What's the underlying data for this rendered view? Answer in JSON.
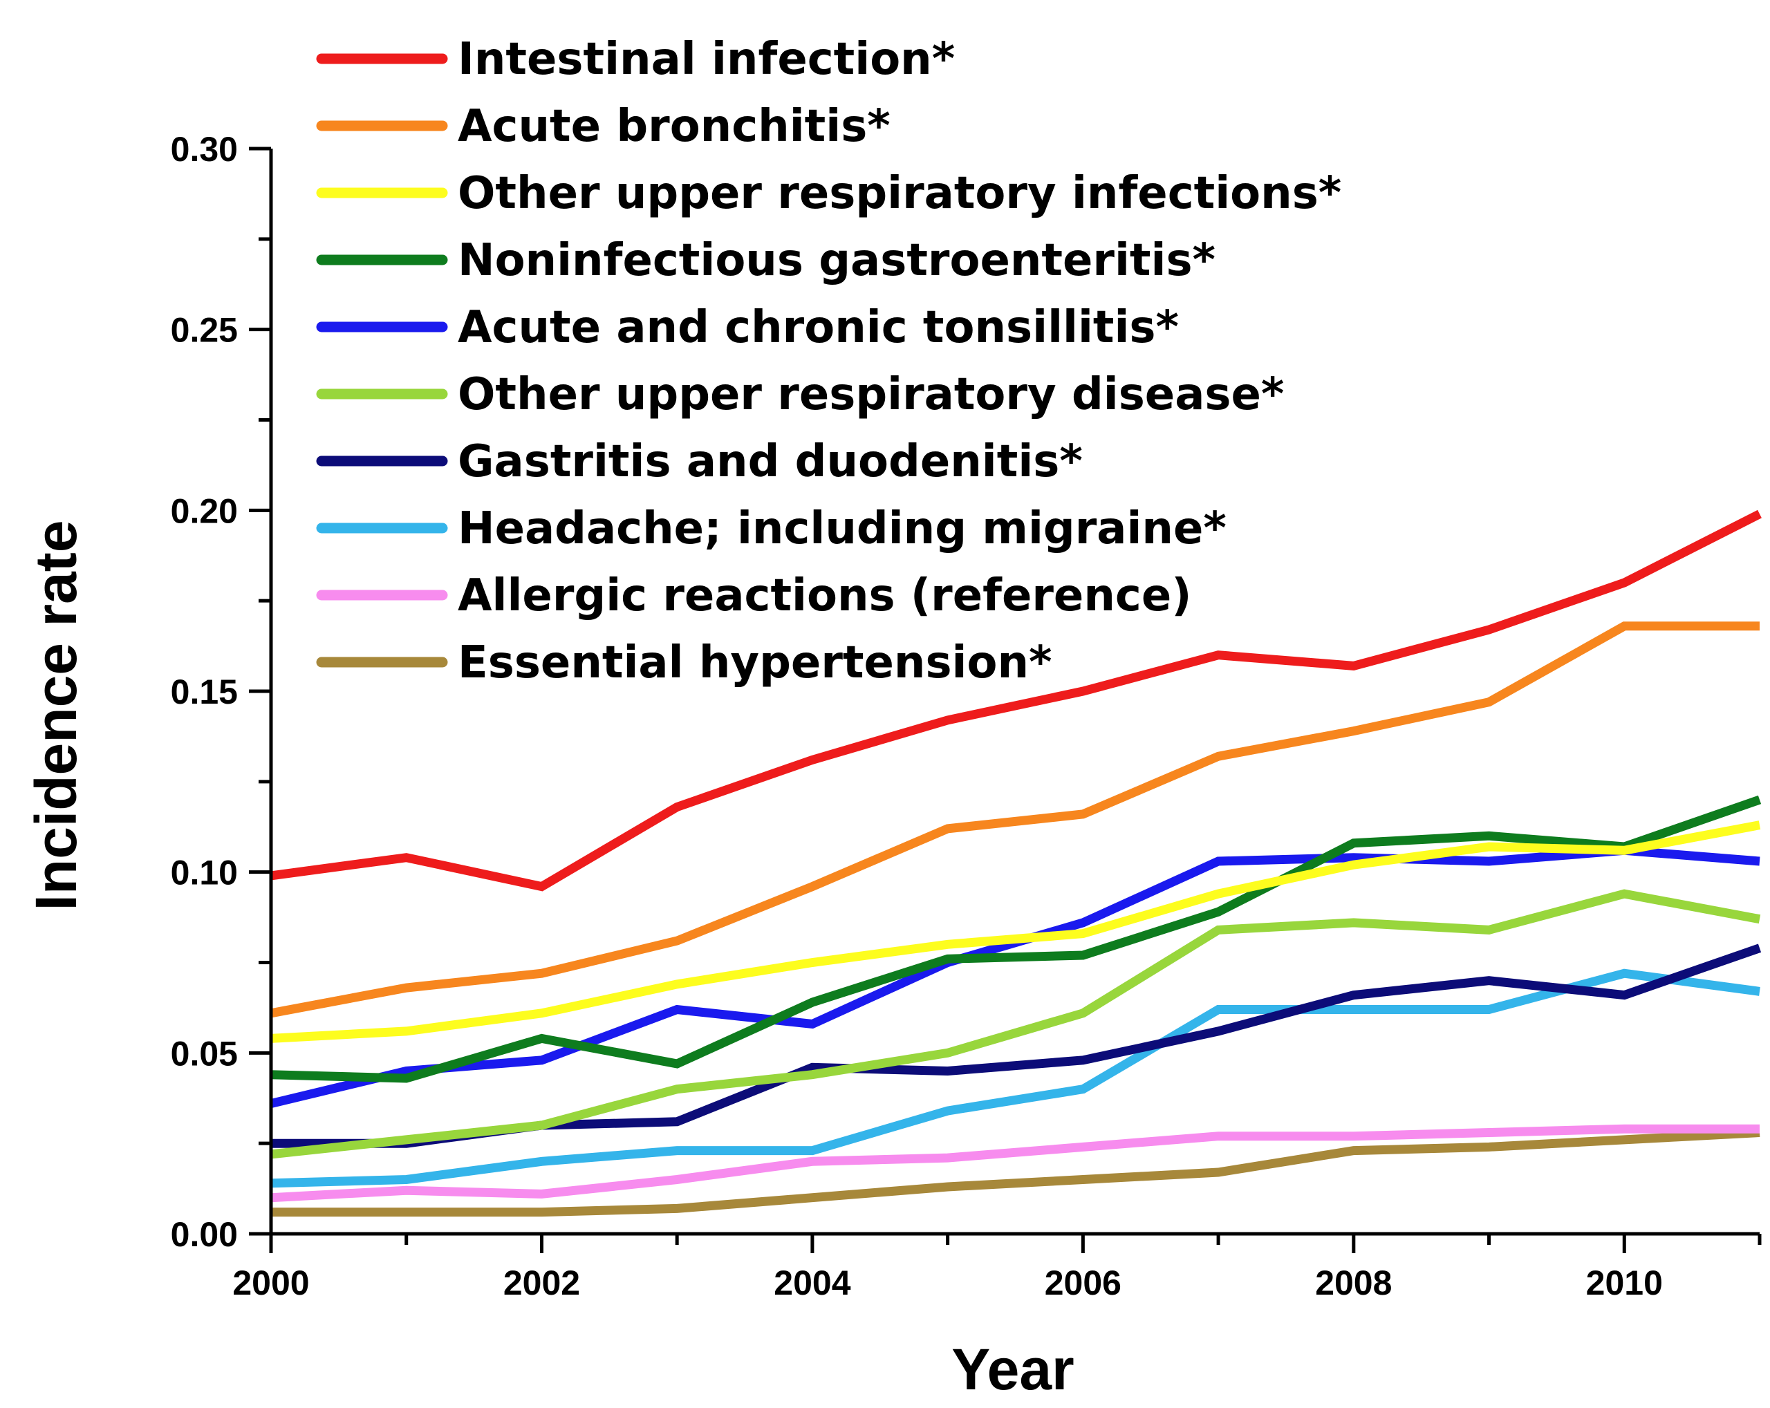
{
  "chart_data": {
    "type": "line",
    "title": "",
    "xlabel": "Year",
    "ylabel": "Incidence rate",
    "xlim": [
      2000,
      2011
    ],
    "ylim": [
      0.0,
      0.3
    ],
    "x_ticks": [
      2000,
      2002,
      2004,
      2006,
      2008,
      2010
    ],
    "x_tick_labels": [
      "2000",
      "2002",
      "2004",
      "2006",
      "2008",
      "2010"
    ],
    "y_ticks": [
      0.0,
      0.05,
      0.1,
      0.15,
      0.2,
      0.25,
      0.3
    ],
    "y_tick_labels": [
      "0.00",
      "0.05",
      "0.10",
      "0.15",
      "0.20",
      "0.25",
      "0.30"
    ],
    "legend_position": "top-left",
    "x": [
      2000,
      2001,
      2002,
      2003,
      2004,
      2005,
      2006,
      2007,
      2008,
      2009,
      2010,
      2011
    ],
    "series": [
      {
        "name": "Intestinal infection*",
        "color": "#ee1c1c",
        "values": [
          0.099,
          0.104,
          0.096,
          0.118,
          0.131,
          0.142,
          0.15,
          0.16,
          0.157,
          0.167,
          0.18,
          0.199
        ]
      },
      {
        "name": "Acute bronchitis*",
        "color": "#f7861e",
        "values": [
          0.061,
          0.068,
          0.072,
          0.081,
          0.096,
          0.112,
          0.116,
          0.132,
          0.139,
          0.147,
          0.168,
          0.168
        ]
      },
      {
        "name": "Other upper respiratory infections*",
        "color": "#fdfd1e",
        "values": [
          0.054,
          0.056,
          0.061,
          0.069,
          0.075,
          0.08,
          0.083,
          0.094,
          0.102,
          0.107,
          0.106,
          0.113
        ]
      },
      {
        "name": "Noninfectious gastroenteritis*",
        "color": "#0e7c1e",
        "values": [
          0.044,
          0.043,
          0.054,
          0.047,
          0.064,
          0.076,
          0.077,
          0.089,
          0.108,
          0.11,
          0.107,
          0.12
        ]
      },
      {
        "name": "Acute and chronic tonsillitis*",
        "color": "#1a1aee",
        "values": [
          0.036,
          0.045,
          0.048,
          0.062,
          0.058,
          0.075,
          0.086,
          0.103,
          0.104,
          0.103,
          0.106,
          0.103
        ]
      },
      {
        "name": "Other upper respiratory disease*",
        "color": "#98d63c",
        "values": [
          0.022,
          0.026,
          0.03,
          0.04,
          0.044,
          0.05,
          0.061,
          0.084,
          0.086,
          0.084,
          0.094,
          0.087
        ]
      },
      {
        "name": "Gastritis and duodenitis*",
        "color": "#0c0c78",
        "values": [
          0.025,
          0.025,
          0.03,
          0.031,
          0.046,
          0.045,
          0.048,
          0.056,
          0.066,
          0.07,
          0.066,
          0.079
        ]
      },
      {
        "name": "Headache; including migraine*",
        "color": "#34b4ea",
        "values": [
          0.014,
          0.015,
          0.02,
          0.023,
          0.023,
          0.034,
          0.04,
          0.062,
          0.062,
          0.062,
          0.072,
          0.067
        ]
      },
      {
        "name": "Allergic reactions (reference)",
        "color": "#f78cee",
        "values": [
          0.01,
          0.012,
          0.011,
          0.015,
          0.02,
          0.021,
          0.024,
          0.027,
          0.027,
          0.028,
          0.029,
          0.029
        ]
      },
      {
        "name": "Essential hypertension*",
        "color": "#a7883a",
        "values": [
          0.006,
          0.006,
          0.006,
          0.007,
          0.01,
          0.013,
          0.015,
          0.017,
          0.023,
          0.024,
          0.026,
          0.028
        ]
      }
    ]
  }
}
